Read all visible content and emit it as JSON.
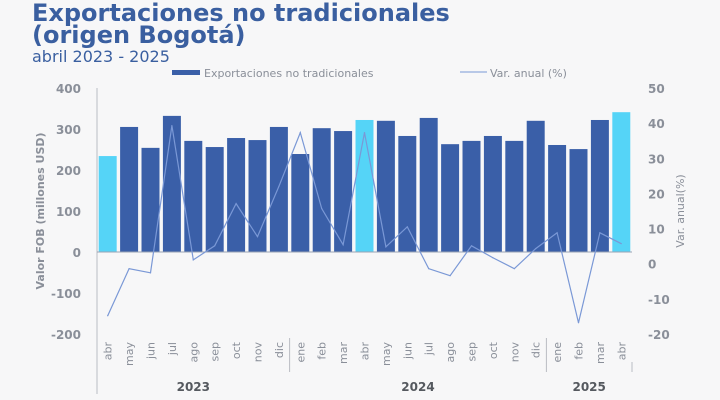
{
  "chart_data": {
    "type": "bar",
    "title_line1": "Exportaciones no tradicionales",
    "title_line2": "(origen Bogotá)",
    "subtitle": "abril 2023 - 2025",
    "ylabel": "Valor FOB (millones USD)",
    "y2label": "Var. anual(%)",
    "ylim": [
      -200,
      400
    ],
    "y2lim": [
      -20,
      50
    ],
    "yticks": [
      -200,
      -100,
      0,
      100,
      200,
      300,
      400
    ],
    "y2ticks": [
      -20,
      -10,
      0,
      10,
      20,
      30,
      40,
      50
    ],
    "legend_position": "top",
    "categories": [
      "abr",
      "may",
      "jun",
      "jul",
      "ago",
      "sep",
      "oct",
      "nov",
      "dic",
      "ene",
      "feb",
      "mar",
      "abr",
      "may",
      "jun",
      "jul",
      "ago",
      "sep",
      "oct",
      "nov",
      "dic",
      "ene",
      "feb",
      "mar",
      "abr"
    ],
    "years": [
      {
        "label": "2023",
        "start": 0,
        "end": 8
      },
      {
        "label": "2024",
        "start": 9,
        "end": 20
      },
      {
        "label": "2025",
        "start": 21,
        "end": 24
      }
    ],
    "series": [
      {
        "name": "Exportaciones no tradicionales",
        "type": "bar",
        "axis": "left",
        "color": "#3a5fa8",
        "highlight_color": "#55d4f7",
        "highlight_indices": [
          0,
          12,
          24
        ],
        "values": [
          234,
          305,
          254,
          332,
          271,
          256,
          278,
          273,
          305,
          239,
          302,
          295,
          322,
          320,
          283,
          327,
          263,
          271,
          283,
          271,
          320,
          261,
          251,
          322,
          341
        ]
      },
      {
        "name": "Var. anual (%)",
        "type": "line",
        "axis": "right",
        "color": "#7a98d6",
        "values": [
          -14.8,
          -1.4,
          -2.6,
          39.3,
          1.1,
          5.1,
          17.1,
          7.7,
          22,
          37.3,
          15.7,
          5.4,
          37.3,
          4.8,
          10.5,
          -1.4,
          -3.4,
          5.1,
          1.7,
          -1.4,
          4.3,
          8.8,
          -16.8,
          8.8,
          5.7
        ]
      }
    ]
  }
}
